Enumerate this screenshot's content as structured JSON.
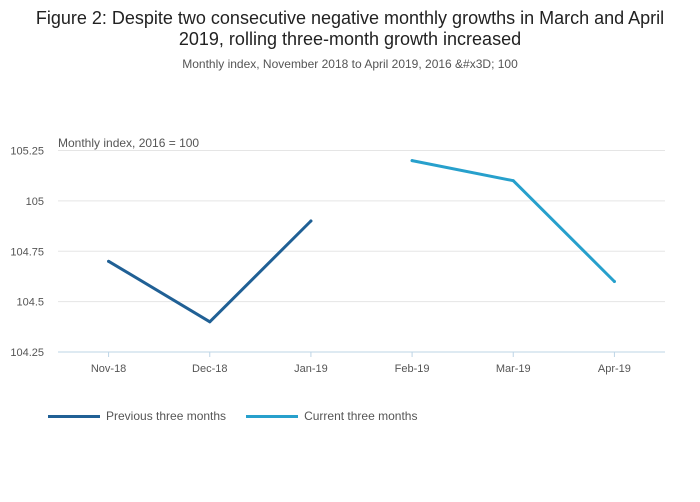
{
  "chart_data": {
    "type": "line",
    "title": "Figure 2: Despite two consecutive negative monthly growths in March and April 2019, rolling three-month growth increased",
    "subtitle": "Monthly index, November 2018 to April 2019, 2016 &#x3D; 100",
    "ylabel": "Monthly index, 2016 = 100",
    "xlabel": "",
    "categories": [
      "Nov-18",
      "Dec-18",
      "Jan-19",
      "Feb-19",
      "Mar-19",
      "Apr-19"
    ],
    "ylim": [
      104.25,
      105.3
    ],
    "yticks": [
      104.25,
      104.5,
      104.75,
      105,
      105.25
    ],
    "ytick_labels": [
      "104.25",
      "104.5",
      "104.75",
      "105",
      "105.25"
    ],
    "grid": true,
    "legend_position": "bottom-left",
    "series": [
      {
        "name": "Previous three months",
        "color": "#206095",
        "values": [
          104.7,
          104.4,
          104.9,
          null,
          null,
          null
        ]
      },
      {
        "name": "Current three months",
        "color": "#27a0cc",
        "values": [
          null,
          null,
          null,
          105.2,
          105.1,
          104.6
        ]
      }
    ]
  }
}
